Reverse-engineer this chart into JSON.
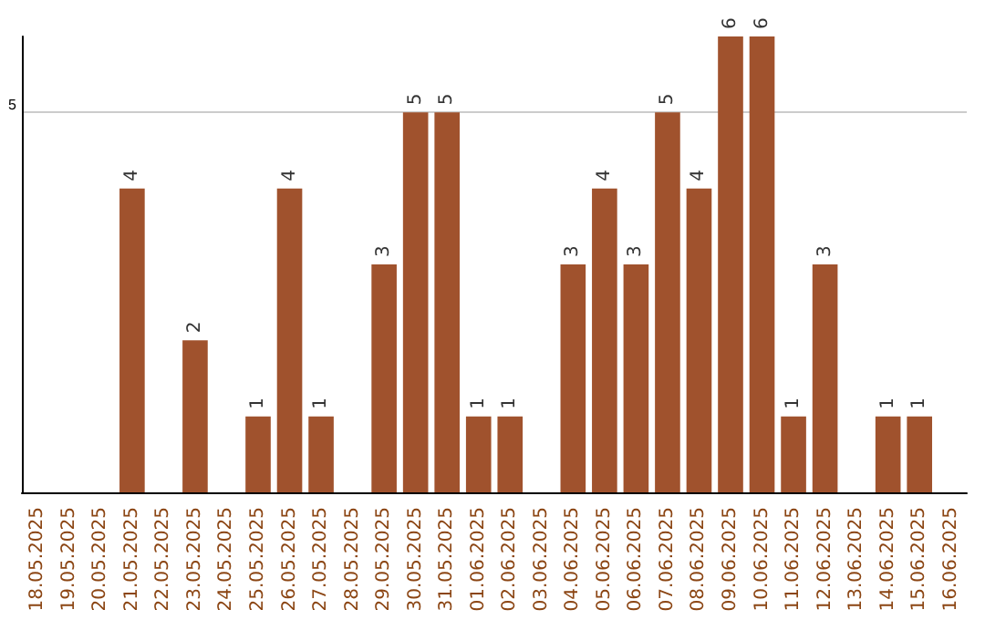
{
  "chart_data": {
    "type": "bar",
    "categories": [
      "18.05.2025",
      "19.05.2025",
      "20.05.2025",
      "21.05.2025",
      "22.05.2025",
      "23.05.2025",
      "24.05.2025",
      "25.05.2025",
      "26.05.2025",
      "27.05.2025",
      "28.05.2025",
      "29.05.2025",
      "30.05.2025",
      "31.05.2025",
      "01.06.2025",
      "02.06.2025",
      "03.06.2025",
      "04.06.2025",
      "05.06.2025",
      "06.06.2025",
      "07.06.2025",
      "08.06.2025",
      "09.06.2025",
      "10.06.2025",
      "11.06.2025",
      "12.06.2025",
      "13.06.2025",
      "14.06.2025",
      "15.06.2025",
      "16.06.2025"
    ],
    "values": [
      0,
      0,
      0,
      4,
      0,
      2,
      0,
      1,
      4,
      1,
      0,
      3,
      5,
      5,
      1,
      1,
      0,
      3,
      4,
      3,
      5,
      4,
      6,
      6,
      1,
      3,
      0,
      1,
      1,
      0
    ],
    "value_labels": [
      null,
      null,
      null,
      "4",
      null,
      "2",
      null,
      "1",
      "4",
      "1",
      null,
      "3",
      "5",
      "5",
      "1",
      "1",
      null,
      "3",
      "4",
      "3",
      "5",
      "4",
      "6",
      "6",
      "1",
      "3",
      null,
      "1",
      "1",
      null
    ],
    "color": "#a0522d",
    "ylim": [
      0,
      6
    ],
    "yticks": [
      5
    ],
    "grid": "y"
  }
}
